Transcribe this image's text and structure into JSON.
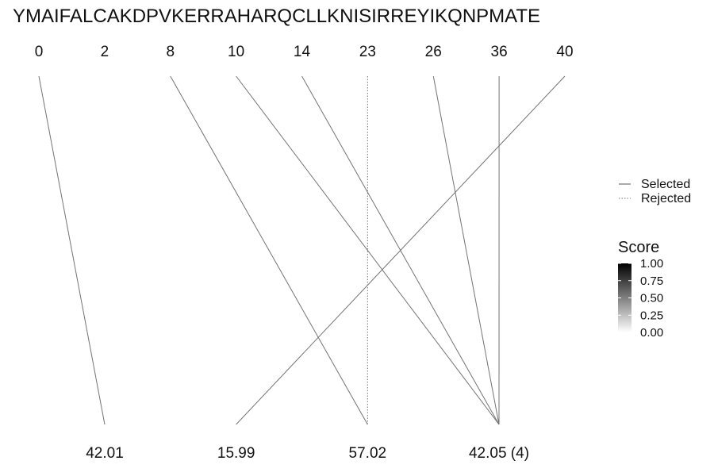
{
  "chart_data": {
    "type": "line",
    "sequence": "YMAIFALCAKDPVKERRAHARQCLLKNISIRREYIKQNPMATE",
    "positions": [
      0,
      2,
      8,
      10,
      14,
      23,
      26,
      36,
      40
    ],
    "masses": [
      "42.01",
      "15.99",
      "57.02",
      "42.05 (4)"
    ],
    "links": [
      {
        "from": 0,
        "to": "42.01",
        "status": "Selected",
        "score": 0.55
      },
      {
        "from": 8,
        "to": "57.02",
        "status": "Selected",
        "score": 0.55
      },
      {
        "from": 10,
        "to": "42.05 (4)",
        "status": "Selected",
        "score": 0.55
      },
      {
        "from": 14,
        "to": "42.05 (4)",
        "status": "Selected",
        "score": 0.55
      },
      {
        "from": 23,
        "to": "57.02",
        "status": "Rejected",
        "score": 0.55
      },
      {
        "from": 26,
        "to": "42.05 (4)",
        "status": "Selected",
        "score": 0.55
      },
      {
        "from": 36,
        "to": "42.05 (4)",
        "status": "Selected",
        "score": 0.55
      },
      {
        "from": 40,
        "to": "15.99",
        "status": "Selected",
        "score": 0.55
      }
    ],
    "legend": {
      "linetype": [
        "Selected",
        "Rejected"
      ],
      "score_title": "Score",
      "score_ticks": [
        "1.00",
        "0.75",
        "0.50",
        "0.25",
        "0.00"
      ],
      "score_range": [
        0,
        1
      ],
      "placement": "right"
    },
    "colors": {
      "score_high": "#000000",
      "score_low": "#ffffff",
      "line": "#8c8c8c"
    }
  }
}
